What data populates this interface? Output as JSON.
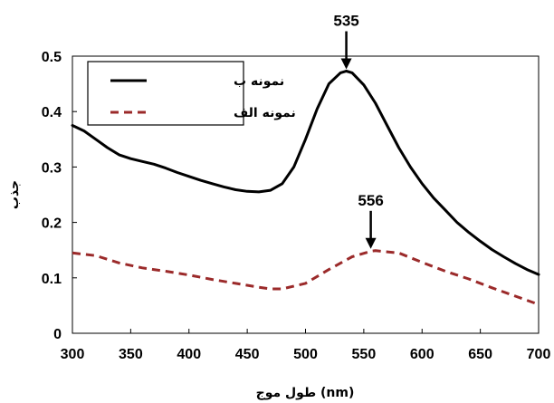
{
  "chart_data": {
    "type": "line",
    "xlabel": "طول موج (nm)",
    "ylabel": "جذب",
    "xlim": [
      300,
      700
    ],
    "ylim": [
      0,
      0.5
    ],
    "xticks": [
      "300",
      "350",
      "400",
      "450",
      "500",
      "550",
      "600",
      "650",
      "700"
    ],
    "yticks": [
      "0",
      "0.1",
      "0.2",
      "0.3",
      "0.4",
      "0.5"
    ],
    "grid": false,
    "legend_position": "top-left",
    "series": [
      {
        "name": "نمونه ب",
        "color": "#000000",
        "style": "solid",
        "x": [
          300,
          310,
          320,
          330,
          340,
          350,
          360,
          370,
          380,
          390,
          400,
          410,
          420,
          430,
          440,
          450,
          460,
          470,
          480,
          490,
          500,
          510,
          520,
          530,
          535,
          540,
          550,
          560,
          570,
          580,
          590,
          600,
          610,
          620,
          630,
          640,
          650,
          660,
          670,
          680,
          690,
          700
        ],
        "y": [
          0.375,
          0.365,
          0.35,
          0.335,
          0.322,
          0.315,
          0.31,
          0.305,
          0.298,
          0.29,
          0.283,
          0.276,
          0.27,
          0.264,
          0.259,
          0.256,
          0.255,
          0.258,
          0.27,
          0.3,
          0.35,
          0.405,
          0.45,
          0.47,
          0.473,
          0.47,
          0.448,
          0.415,
          0.375,
          0.335,
          0.3,
          0.27,
          0.244,
          0.222,
          0.2,
          0.182,
          0.166,
          0.151,
          0.138,
          0.126,
          0.115,
          0.106
        ]
      },
      {
        "name": "نمونه الف",
        "color": "#9b2a2a",
        "style": "dashed",
        "x": [
          300,
          320,
          340,
          360,
          380,
          400,
          420,
          440,
          460,
          470,
          480,
          500,
          520,
          540,
          556,
          560,
          580,
          600,
          620,
          640,
          660,
          680,
          700
        ],
        "y": [
          0.145,
          0.14,
          0.127,
          0.118,
          0.112,
          0.105,
          0.097,
          0.09,
          0.083,
          0.08,
          0.08,
          0.09,
          0.115,
          0.138,
          0.148,
          0.149,
          0.145,
          0.128,
          0.112,
          0.098,
          0.082,
          0.067,
          0.052
        ]
      }
    ],
    "annotations": [
      {
        "label": "535",
        "x": 535,
        "y": 0.473
      },
      {
        "label": "556",
        "x": 556,
        "y": 0.149
      }
    ]
  }
}
